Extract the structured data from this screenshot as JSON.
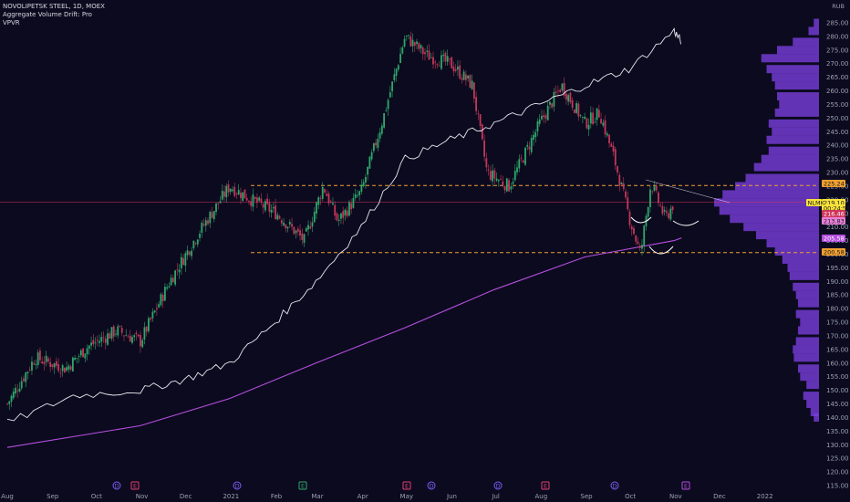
{
  "header": {
    "symbol_line": "NOVOLIPETSK STEEL, 1D, MOEX",
    "indicator1": "Aggregate Volume Drift: Pro",
    "indicator2": "VPVR"
  },
  "currency_label": "RUB",
  "colors": {
    "background": "#0c0a1f",
    "up_candle": "#2ea86a",
    "down_candle": "#c2385a",
    "drift_line": "#e8e8ee",
    "ma_line": "#b64fe0",
    "volume_profile": "#7b3fe0",
    "level_line": "#f0a030",
    "price_line": "#d0345a"
  },
  "price_tags": [
    {
      "text": "225.24",
      "bg": "#f0a030",
      "fg": "#1a1a1a"
    },
    {
      "text": "219.10",
      "bg": "#f6e23a",
      "fg": "#1a1a1a"
    },
    {
      "text": "00:24:53",
      "bg": "#f6e23a",
      "fg": "#1a1a1a"
    },
    {
      "text": "216.46",
      "bg": "#d0345a",
      "fg": "#ffffff"
    },
    {
      "text": "213.83",
      "bg": "#e880d8",
      "fg": "#1a1a1a"
    },
    {
      "text": "205.58",
      "bg": "#b64fe0",
      "fg": "#ffffff"
    },
    {
      "text": "200.58",
      "bg": "#f0a030",
      "fg": "#1a1a1a"
    }
  ],
  "left_tag": "NLMK",
  "events": [
    {
      "label": "D",
      "color": "#7a5cf0"
    },
    {
      "label": "E",
      "color": "#e04070"
    },
    {
      "label": "D",
      "color": "#7a5cf0"
    },
    {
      "label": "E",
      "color": "#2ea86a"
    },
    {
      "label": "E",
      "color": "#e04070"
    },
    {
      "label": "D",
      "color": "#7a5cf0"
    },
    {
      "label": "D",
      "color": "#7a5cf0"
    },
    {
      "label": "E",
      "color": "#e04070"
    },
    {
      "label": "D",
      "color": "#7a5cf0"
    },
    {
      "label": "E",
      "color": "#b64fe0"
    }
  ],
  "chart_data": {
    "type": "candlestick",
    "title": "NOVOLIPETSK STEEL, 1D, MOEX",
    "y_axis": {
      "min": 115,
      "max": 285,
      "step": 5,
      "unit": "RUB",
      "ticks": [
        "285.00",
        "280.00",
        "275.00",
        "270.00",
        "265.00",
        "260.00",
        "255.00",
        "250.00",
        "245.00",
        "240.00",
        "235.00",
        "230.00",
        "225.00",
        "220.00",
        "215.00",
        "210.00",
        "205.00",
        "200.00",
        "195.00",
        "190.00",
        "185.00",
        "180.00",
        "175.00",
        "170.00",
        "165.00",
        "160.00",
        "155.00",
        "150.00",
        "145.00",
        "140.00",
        "135.00",
        "130.00",
        "125.00",
        "120.00",
        "115.00"
      ]
    },
    "x_axis": {
      "labels": [
        "Aug",
        "Sep",
        "Oct",
        "Nov",
        "Dec",
        "2021",
        "Feb",
        "Mar",
        "Apr",
        "May",
        "Jun",
        "Jul",
        "Aug",
        "Sep",
        "Oct",
        "Nov",
        "Dec",
        "2022"
      ]
    },
    "price_path": [
      {
        "x": "2020-08-01",
        "y": 145
      },
      {
        "x": "2020-08-20",
        "y": 162
      },
      {
        "x": "2020-09-10",
        "y": 158
      },
      {
        "x": "2020-09-25",
        "y": 166
      },
      {
        "x": "2020-10-15",
        "y": 172
      },
      {
        "x": "2020-10-31",
        "y": 168
      },
      {
        "x": "2020-11-20",
        "y": 190
      },
      {
        "x": "2020-12-10",
        "y": 208
      },
      {
        "x": "2020-12-31",
        "y": 225
      },
      {
        "x": "2021-01-15",
        "y": 220
      },
      {
        "x": "2021-02-01",
        "y": 215
      },
      {
        "x": "2021-02-20",
        "y": 205
      },
      {
        "x": "2021-03-05",
        "y": 225
      },
      {
        "x": "2021-03-15",
        "y": 212
      },
      {
        "x": "2021-03-31",
        "y": 223
      },
      {
        "x": "2021-04-15",
        "y": 250
      },
      {
        "x": "2021-04-30",
        "y": 280
      },
      {
        "x": "2021-05-15",
        "y": 273
      },
      {
        "x": "2021-05-31",
        "y": 270
      },
      {
        "x": "2021-06-15",
        "y": 262
      },
      {
        "x": "2021-06-25",
        "y": 230
      },
      {
        "x": "2021-07-10",
        "y": 225
      },
      {
        "x": "2021-07-31",
        "y": 248
      },
      {
        "x": "2021-08-15",
        "y": 262
      },
      {
        "x": "2021-08-31",
        "y": 248
      },
      {
        "x": "2021-09-10",
        "y": 252
      },
      {
        "x": "2021-09-20",
        "y": 235
      },
      {
        "x": "2021-10-01",
        "y": 212
      },
      {
        "x": "2021-10-08",
        "y": 200
      },
      {
        "x": "2021-10-15",
        "y": 226
      },
      {
        "x": "2021-10-25",
        "y": 213
      },
      {
        "x": "2021-10-31",
        "y": 219
      }
    ],
    "drift_line": [
      {
        "x": "2020-08-01",
        "y": 138
      },
      {
        "x": "2020-09-15",
        "y": 148
      },
      {
        "x": "2020-10-31",
        "y": 150
      },
      {
        "x": "2020-11-30",
        "y": 154
      },
      {
        "x": "2020-12-31",
        "y": 160
      },
      {
        "x": "2021-01-31",
        "y": 175
      },
      {
        "x": "2021-02-28",
        "y": 190
      },
      {
        "x": "2021-03-31",
        "y": 210
      },
      {
        "x": "2021-04-30",
        "y": 235
      },
      {
        "x": "2021-05-31",
        "y": 242
      },
      {
        "x": "2021-06-30",
        "y": 248
      },
      {
        "x": "2021-07-31",
        "y": 255
      },
      {
        "x": "2021-08-31",
        "y": 262
      },
      {
        "x": "2021-09-30",
        "y": 268
      },
      {
        "x": "2021-10-31",
        "y": 282
      },
      {
        "x": "2021-11-05",
        "y": 278
      }
    ],
    "ma_line": [
      {
        "x": "2020-08-01",
        "y": 129
      },
      {
        "x": "2020-10-31",
        "y": 137
      },
      {
        "x": "2020-12-31",
        "y": 147
      },
      {
        "x": "2021-02-28",
        "y": 160
      },
      {
        "x": "2021-04-30",
        "y": 173
      },
      {
        "x": "2021-06-30",
        "y": 187
      },
      {
        "x": "2021-08-31",
        "y": 199
      },
      {
        "x": "2021-10-31",
        "y": 205
      },
      {
        "x": "2021-11-05",
        "y": 206
      }
    ],
    "levels": [
      {
        "y": 225.24,
        "style": "dashed"
      },
      {
        "y": 200.58,
        "style": "dashed"
      },
      {
        "y": 219.1,
        "style": "current"
      }
    ],
    "volume_profile": [
      {
        "price": 285,
        "v": 0.05
      },
      {
        "price": 282,
        "v": 0.1
      },
      {
        "price": 278,
        "v": 0.25
      },
      {
        "price": 275,
        "v": 0.4
      },
      {
        "price": 272,
        "v": 0.55
      },
      {
        "price": 268,
        "v": 0.5
      },
      {
        "price": 265,
        "v": 0.45
      },
      {
        "price": 262,
        "v": 0.42
      },
      {
        "price": 258,
        "v": 0.4
      },
      {
        "price": 255,
        "v": 0.38
      },
      {
        "price": 252,
        "v": 0.42
      },
      {
        "price": 248,
        "v": 0.48
      },
      {
        "price": 245,
        "v": 0.45
      },
      {
        "price": 242,
        "v": 0.5
      },
      {
        "price": 238,
        "v": 0.48
      },
      {
        "price": 235,
        "v": 0.55
      },
      {
        "price": 232,
        "v": 0.62
      },
      {
        "price": 228,
        "v": 0.7
      },
      {
        "price": 225,
        "v": 0.8
      },
      {
        "price": 222,
        "v": 0.92
      },
      {
        "price": 219,
        "v": 1.0
      },
      {
        "price": 216,
        "v": 0.95
      },
      {
        "price": 213,
        "v": 0.85
      },
      {
        "price": 210,
        "v": 0.72
      },
      {
        "price": 207,
        "v": 0.6
      },
      {
        "price": 204,
        "v": 0.5
      },
      {
        "price": 201,
        "v": 0.42
      },
      {
        "price": 198,
        "v": 0.35
      },
      {
        "price": 195,
        "v": 0.3
      },
      {
        "price": 192,
        "v": 0.28
      },
      {
        "price": 188,
        "v": 0.25
      },
      {
        "price": 185,
        "v": 0.22
      },
      {
        "price": 182,
        "v": 0.2
      },
      {
        "price": 178,
        "v": 0.22
      },
      {
        "price": 175,
        "v": 0.18
      },
      {
        "price": 172,
        "v": 0.2
      },
      {
        "price": 168,
        "v": 0.22
      },
      {
        "price": 165,
        "v": 0.25
      },
      {
        "price": 162,
        "v": 0.24
      },
      {
        "price": 158,
        "v": 0.2
      },
      {
        "price": 155,
        "v": 0.18
      },
      {
        "price": 152,
        "v": 0.12
      },
      {
        "price": 148,
        "v": 0.15
      },
      {
        "price": 145,
        "v": 0.12
      },
      {
        "price": 142,
        "v": 0.08
      },
      {
        "price": 140,
        "v": 0.05
      }
    ]
  }
}
